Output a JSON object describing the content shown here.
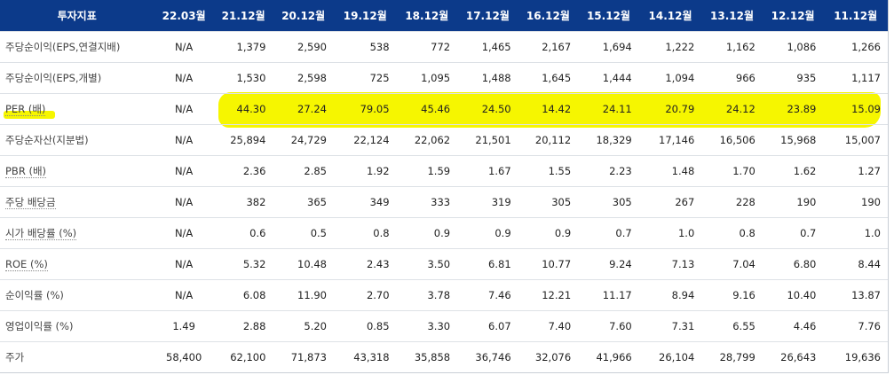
{
  "header": [
    "투자지표",
    "22.03월",
    "21.12월",
    "20.12월",
    "19.12월",
    "18.12월",
    "17.12월",
    "16.12월",
    "15.12월",
    "14.12월",
    "13.12월",
    "12.12월",
    "11.12월"
  ],
  "rows": [
    {
      "label": "주당순이익(EPS,연결지배)",
      "values": [
        "N/A",
        "1,379",
        "2,590",
        "538",
        "772",
        "1,465",
        "2,167",
        "1,694",
        "1,222",
        "1,162",
        "1,086",
        "1,266"
      ]
    },
    {
      "label": "주당순이익(EPS,개별)",
      "values": [
        "N/A",
        "1,530",
        "2,598",
        "725",
        "1,095",
        "1,488",
        "1,645",
        "1,444",
        "1,094",
        "966",
        "935",
        "1,117"
      ]
    },
    {
      "label": "PER (배)",
      "values": [
        "N/A",
        "44.30",
        "27.24",
        "79.05",
        "45.46",
        "24.50",
        "14.42",
        "24.11",
        "20.79",
        "24.12",
        "23.89",
        "15.09"
      ]
    },
    {
      "label": "주당순자산(지분법)",
      "values": [
        "N/A",
        "25,894",
        "24,729",
        "22,124",
        "22,062",
        "21,501",
        "20,112",
        "18,329",
        "17,146",
        "16,506",
        "15,968",
        "15,007"
      ]
    },
    {
      "label": "PBR (배)",
      "values": [
        "N/A",
        "2.36",
        "2.85",
        "1.92",
        "1.59",
        "1.67",
        "1.55",
        "2.23",
        "1.48",
        "1.70",
        "1.62",
        "1.27"
      ]
    },
    {
      "label": "주당 배당금",
      "values": [
        "N/A",
        "382",
        "365",
        "349",
        "333",
        "319",
        "305",
        "305",
        "267",
        "228",
        "190",
        "190"
      ]
    },
    {
      "label": "시가 배당률 (%)",
      "values": [
        "N/A",
        "0.6",
        "0.5",
        "0.8",
        "0.9",
        "0.9",
        "0.9",
        "0.7",
        "1.0",
        "0.8",
        "0.7",
        "1.0"
      ]
    },
    {
      "label": "ROE (%)",
      "values": [
        "N/A",
        "5.32",
        "10.48",
        "2.43",
        "3.50",
        "6.81",
        "10.77",
        "9.24",
        "7.13",
        "7.04",
        "6.80",
        "8.44"
      ]
    },
    {
      "label": "순이익률 (%)",
      "values": [
        "N/A",
        "6.08",
        "11.90",
        "2.70",
        "3.78",
        "7.46",
        "12.21",
        "11.17",
        "8.94",
        "9.16",
        "10.40",
        "13.87"
      ]
    },
    {
      "label": "영업이익률 (%)",
      "values": [
        "1.49",
        "2.88",
        "5.20",
        "0.85",
        "3.30",
        "6.07",
        "7.40",
        "7.60",
        "7.31",
        "6.55",
        "4.46",
        "7.76"
      ]
    },
    {
      "label": "주가",
      "values": [
        "58,400",
        "62,100",
        "71,873",
        "43,318",
        "35,858",
        "36,746",
        "32,076",
        "41,966",
        "26,104",
        "28,799",
        "26,643",
        "19,636"
      ]
    }
  ]
}
